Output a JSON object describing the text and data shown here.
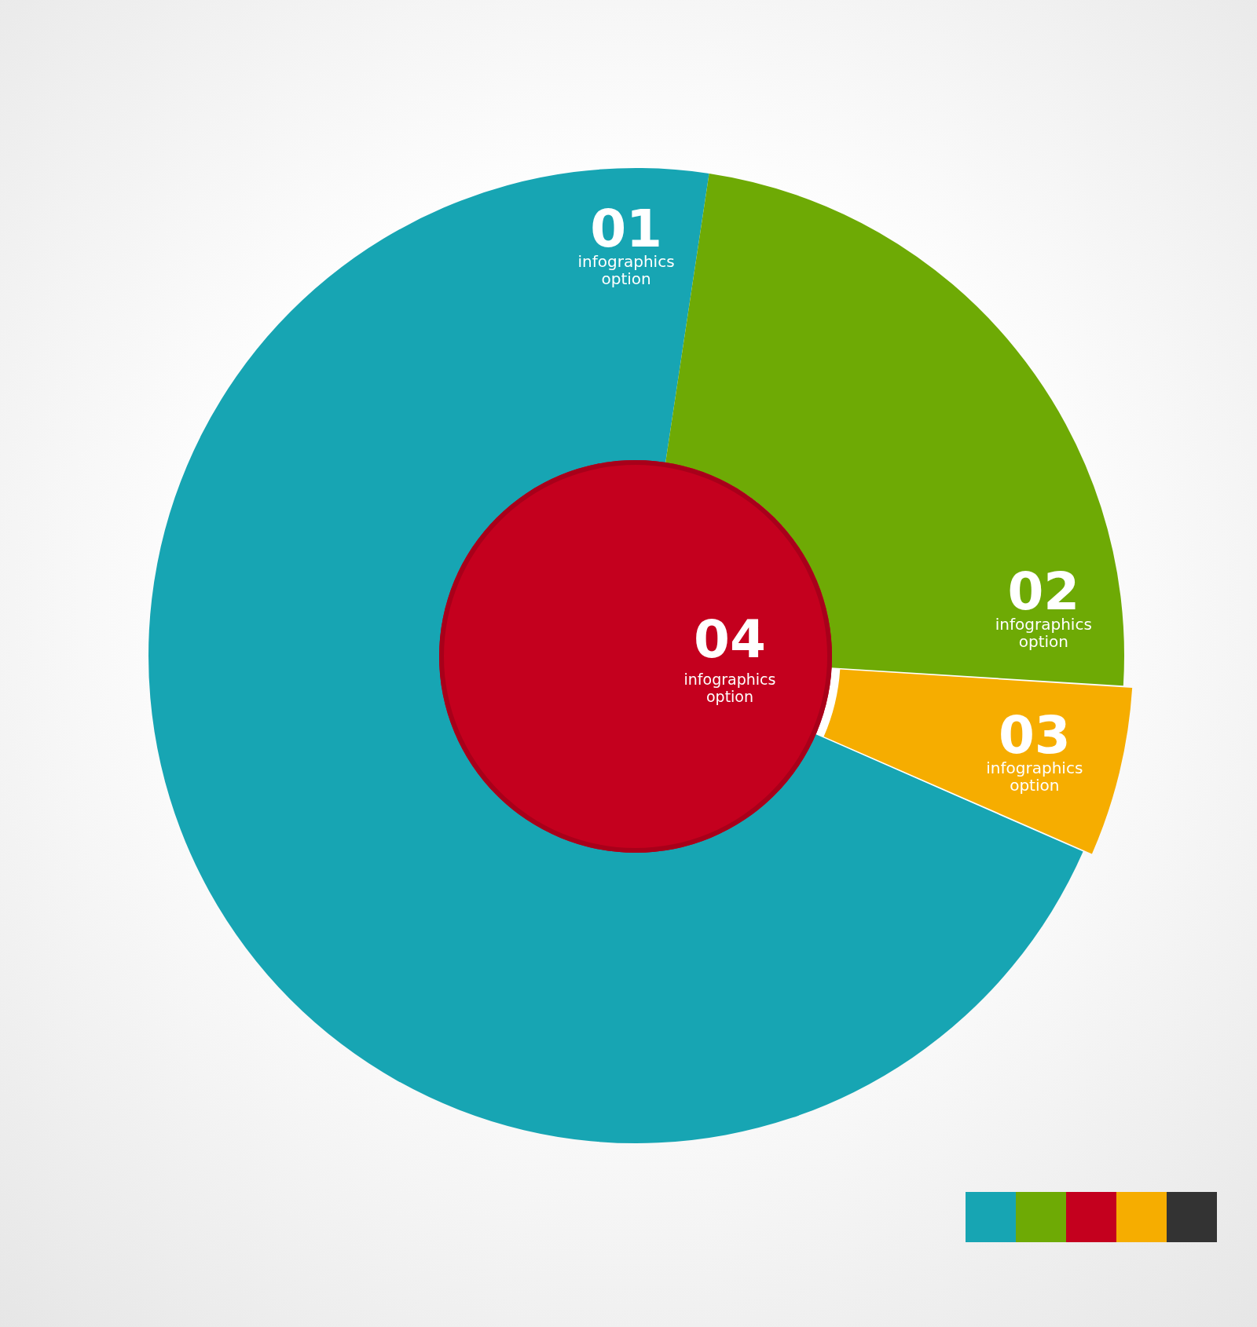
{
  "chart_data": {
    "type": "donut",
    "categories": [
      "01",
      "02",
      "03"
    ],
    "values": [
      70.8,
      23.6,
      5.6
    ],
    "colors": [
      "#17a5b3",
      "#6eaa05",
      "#f6ad00"
    ],
    "annotations": [
      "infographics option",
      "infographics option",
      "infographics option",
      "04",
      "infographics option"
    ],
    "legend": false
  }
}
